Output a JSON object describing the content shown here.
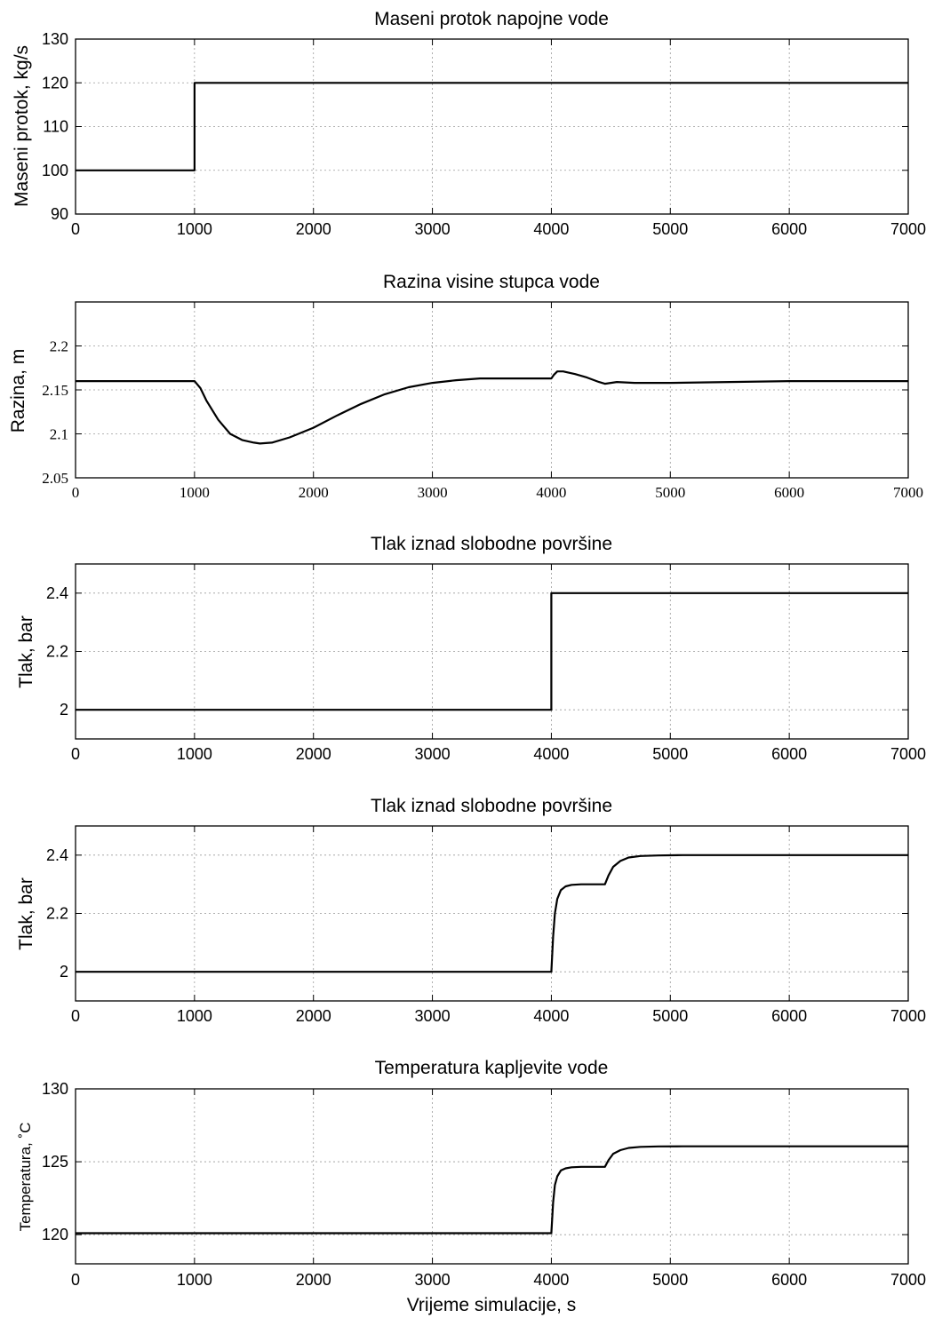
{
  "chart_data": [
    {
      "type": "line",
      "title": "Maseni protok napojne vode",
      "ylabel": "Maseni protok, kg/s",
      "xlabel": "",
      "xlim": [
        0,
        7000
      ],
      "ylim": [
        90,
        130
      ],
      "xticks": [
        "0",
        "1000",
        "2000",
        "3000",
        "4000",
        "5000",
        "6000",
        "7000"
      ],
      "yticks": [
        "90",
        "100",
        "110",
        "120",
        "130"
      ],
      "grid": true,
      "series": [
        {
          "x": [
            0,
            1000,
            1000,
            7000
          ],
          "y": [
            100,
            100,
            120,
            120
          ]
        }
      ]
    },
    {
      "type": "line",
      "title": "Razina visine stupca vode",
      "ylabel": "Razina, m",
      "xlabel": "",
      "xlim": [
        0,
        7000
      ],
      "ylim": [
        2.05,
        2.25
      ],
      "xticks": [
        "0",
        "1000",
        "2000",
        "3000",
        "4000",
        "5000",
        "6000",
        "7000"
      ],
      "yticks": [
        "2.05",
        "2.1",
        "2.15",
        "2.2"
      ],
      "grid": true,
      "series": [
        {
          "x": [
            0,
            1000,
            1050,
            1100,
            1200,
            1300,
            1400,
            1500,
            1550,
            1650,
            1800,
            2000,
            2200,
            2400,
            2600,
            2800,
            3000,
            3200,
            3400,
            3600,
            3800,
            4000,
            4020,
            4050,
            4100,
            4200,
            4300,
            4400,
            4450,
            4550,
            4700,
            5000,
            5500,
            6000,
            6500,
            7000
          ],
          "y": [
            2.16,
            2.16,
            2.152,
            2.138,
            2.116,
            2.1,
            2.093,
            2.09,
            2.089,
            2.09,
            2.096,
            2.107,
            2.121,
            2.134,
            2.145,
            2.153,
            2.158,
            2.161,
            2.163,
            2.163,
            2.163,
            2.163,
            2.167,
            2.171,
            2.171,
            2.168,
            2.164,
            2.159,
            2.157,
            2.159,
            2.158,
            2.158,
            2.159,
            2.16,
            2.16,
            2.16
          ]
        }
      ]
    },
    {
      "type": "line",
      "title": "Tlak iznad slobodne površine",
      "ylabel": "Tlak, bar",
      "xlabel": "",
      "xlim": [
        0,
        7000
      ],
      "ylim": [
        1.9,
        2.5
      ],
      "xticks": [
        "0",
        "1000",
        "2000",
        "3000",
        "4000",
        "5000",
        "6000",
        "7000"
      ],
      "yticks": [
        "2",
        "2.2",
        "2.4"
      ],
      "grid": true,
      "series": [
        {
          "x": [
            0,
            4000,
            4000,
            7000
          ],
          "y": [
            2.0,
            2.0,
            2.4,
            2.4
          ]
        }
      ]
    },
    {
      "type": "line",
      "title": "Tlak iznad slobodne površine",
      "ylabel": "Tlak, bar",
      "xlabel": "",
      "xlim": [
        0,
        7000
      ],
      "ylim": [
        1.9,
        2.5
      ],
      "xticks": [
        "0",
        "1000",
        "2000",
        "3000",
        "4000",
        "5000",
        "6000",
        "7000"
      ],
      "yticks": [
        "2",
        "2.2",
        "2.4"
      ],
      "grid": true,
      "series": [
        {
          "x": [
            0,
            4000,
            4015,
            4030,
            4050,
            4080,
            4120,
            4170,
            4250,
            4350,
            4450,
            4480,
            4520,
            4580,
            4650,
            4750,
            4900,
            5100,
            7000
          ],
          "y": [
            2.0,
            2.0,
            2.12,
            2.2,
            2.25,
            2.28,
            2.293,
            2.298,
            2.3,
            2.3,
            2.3,
            2.33,
            2.36,
            2.38,
            2.392,
            2.397,
            2.399,
            2.4,
            2.4
          ]
        }
      ]
    },
    {
      "type": "line",
      "title": "Temperatura kapljevite vode",
      "ylabel": "Temperatura, ˚C",
      "xlabel": "Vrijeme simulacije, s",
      "xlim": [
        0,
        7000
      ],
      "ylim": [
        118,
        130
      ],
      "xticks": [
        "0",
        "1000",
        "2000",
        "3000",
        "4000",
        "5000",
        "6000",
        "7000"
      ],
      "yticks": [
        "120",
        "125",
        "130"
      ],
      "grid": true,
      "series": [
        {
          "x": [
            0,
            4000,
            4015,
            4030,
            4050,
            4080,
            4120,
            4170,
            4250,
            4350,
            4450,
            4480,
            4520,
            4580,
            4650,
            4750,
            4900,
            5100,
            7000
          ],
          "y": [
            120.1,
            120.1,
            122.2,
            123.4,
            124.0,
            124.4,
            124.55,
            124.62,
            124.65,
            124.65,
            124.65,
            125.1,
            125.55,
            125.8,
            125.95,
            126.02,
            126.05,
            126.06,
            126.06
          ]
        }
      ]
    }
  ]
}
